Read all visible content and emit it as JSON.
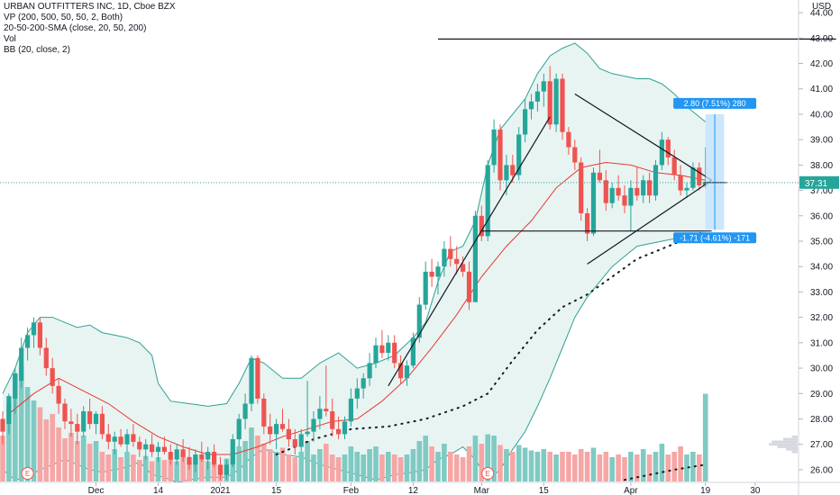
{
  "legend": {
    "line1": "URBAN OUTFITTERS INC, 1D, Cboe BZX",
    "line2": "VP (200, 500, 50, 50, 2, Both)",
    "line3": "20-50-200-SMA (close, 20, 50, 200)",
    "line4": "Vol",
    "line5": "BB (20, close, 2)"
  },
  "currency_label": "USD",
  "colors": {
    "up": "#26a69a",
    "down": "#ef5350",
    "up_vol": "#7fcac3",
    "down_vol": "#f5a6a5",
    "bb": "#2fa196",
    "bb_fill": "#e8f4f2",
    "sma20": "#e53935",
    "sma50": "#131722",
    "price_label": "#2196f3",
    "trend": "#131722"
  },
  "chart_data": {
    "type": "candlestick",
    "ylim": [
      25.5,
      44.5
    ],
    "yticks": [
      "26.00",
      "27.00",
      "28.00",
      "29.00",
      "30.00",
      "31.00",
      "32.00",
      "33.00",
      "34.00",
      "35.00",
      "36.00",
      "37.00",
      "38.00",
      "39.00",
      "40.00",
      "41.00",
      "42.00",
      "43.00",
      "44.00"
    ],
    "xticks": [
      {
        "label": "Dec",
        "index": 15
      },
      {
        "label": "14",
        "index": 25
      },
      {
        "label": "2021",
        "index": 35
      },
      {
        "label": "15",
        "index": 44
      },
      {
        "label": "Feb",
        "index": 56
      },
      {
        "label": "12",
        "index": 66
      },
      {
        "label": "Mar",
        "index": 77
      },
      {
        "label": "15",
        "index": 87
      },
      {
        "label": "Apr",
        "index": 101
      },
      {
        "label": "19",
        "index": 113
      },
      {
        "label": "30",
        "index": 121
      }
    ],
    "last_price": "37.31",
    "last_price_value": 37.31,
    "measure": {
      "upper_label": "2.80 (7.51%) 280",
      "lower_label": "-1.71 (-4.61%) -171",
      "top": 40.0,
      "bottom": 35.45,
      "index_from": 113,
      "index_to": 116
    },
    "earnings_markers": [
      {
        "label": "E",
        "index": 4
      },
      {
        "label": "E",
        "index": 78
      }
    ],
    "ohlc": [
      [
        28.0,
        28.3,
        27.0,
        27.5
      ],
      [
        27.8,
        29.0,
        27.4,
        28.9
      ],
      [
        28.8,
        30.0,
        28.2,
        29.8
      ],
      [
        29.5,
        31.2,
        29.2,
        30.8
      ],
      [
        30.8,
        31.6,
        30.3,
        31.3
      ],
      [
        31.3,
        32.0,
        30.8,
        31.8
      ],
      [
        31.8,
        32.0,
        30.5,
        30.8
      ],
      [
        30.8,
        31.2,
        29.7,
        30.0
      ],
      [
        30.0,
        30.4,
        29.0,
        29.3
      ],
      [
        29.3,
        29.6,
        28.2,
        28.6
      ],
      [
        28.6,
        28.8,
        27.6,
        27.9
      ],
      [
        27.9,
        28.4,
        27.3,
        27.8
      ],
      [
        27.8,
        28.2,
        27.0,
        27.5
      ],
      [
        27.5,
        28.5,
        27.3,
        28.3
      ],
      [
        28.3,
        28.8,
        27.6,
        27.8
      ],
      [
        27.8,
        28.3,
        27.4,
        28.2
      ],
      [
        28.2,
        28.5,
        27.2,
        27.4
      ],
      [
        27.4,
        27.8,
        26.8,
        27.1
      ],
      [
        27.1,
        27.5,
        26.6,
        27.3
      ],
      [
        27.3,
        27.6,
        26.9,
        27.0
      ],
      [
        27.0,
        27.6,
        26.7,
        27.4
      ],
      [
        27.4,
        27.8,
        26.9,
        27.1
      ],
      [
        27.1,
        27.3,
        26.5,
        26.8
      ],
      [
        26.8,
        27.2,
        26.4,
        27.0
      ],
      [
        27.0,
        27.4,
        26.5,
        26.7
      ],
      [
        26.7,
        27.1,
        26.3,
        26.9
      ],
      [
        26.9,
        27.3,
        26.6,
        26.7
      ],
      [
        26.7,
        27.0,
        26.2,
        26.4
      ],
      [
        26.4,
        27.0,
        26.2,
        26.8
      ],
      [
        26.8,
        27.2,
        26.3,
        26.5
      ],
      [
        26.5,
        26.9,
        26.0,
        26.2
      ],
      [
        26.2,
        26.8,
        25.9,
        26.6
      ],
      [
        26.6,
        27.1,
        26.3,
        26.4
      ],
      [
        26.4,
        26.9,
        26.0,
        26.7
      ],
      [
        26.7,
        27.0,
        26.1,
        26.2
      ],
      [
        26.2,
        26.5,
        25.6,
        25.8
      ],
      [
        25.8,
        26.4,
        25.6,
        26.2
      ],
      [
        26.2,
        27.4,
        26.1,
        27.2
      ],
      [
        27.2,
        28.2,
        26.9,
        28.0
      ],
      [
        28.0,
        29.0,
        27.6,
        28.6
      ],
      [
        28.6,
        30.5,
        28.3,
        30.4
      ],
      [
        30.4,
        30.5,
        28.6,
        28.8
      ],
      [
        28.8,
        29.0,
        27.4,
        27.7
      ],
      [
        27.7,
        28.2,
        27.0,
        27.4
      ],
      [
        27.4,
        28.0,
        26.8,
        27.8
      ],
      [
        27.8,
        28.4,
        27.5,
        27.6
      ],
      [
        27.6,
        28.0,
        26.9,
        27.2
      ],
      [
        27.2,
        27.6,
        26.6,
        26.9
      ],
      [
        26.9,
        27.6,
        26.7,
        27.4
      ],
      [
        27.4,
        29.5,
        27.3,
        27.5
      ],
      [
        27.5,
        28.3,
        27.1,
        28.0
      ],
      [
        28.0,
        28.9,
        27.6,
        28.4
      ],
      [
        28.4,
        30.1,
        28.1,
        28.3
      ],
      [
        28.3,
        28.8,
        27.3,
        27.6
      ],
      [
        27.6,
        28.1,
        27.2,
        27.4
      ],
      [
        27.4,
        28.1,
        27.2,
        27.9
      ],
      [
        27.9,
        29.2,
        27.7,
        28.8
      ],
      [
        28.8,
        29.6,
        28.4,
        29.2
      ],
      [
        29.2,
        29.8,
        28.8,
        29.6
      ],
      [
        29.6,
        30.6,
        29.3,
        30.2
      ],
      [
        30.2,
        31.2,
        30.0,
        30.9
      ],
      [
        30.9,
        31.5,
        30.4,
        30.6
      ],
      [
        30.6,
        31.3,
        30.3,
        31.0
      ],
      [
        31.0,
        31.3,
        30.0,
        30.2
      ],
      [
        30.2,
        30.5,
        29.4,
        29.6
      ],
      [
        29.6,
        30.3,
        29.3,
        30.1
      ],
      [
        30.1,
        31.4,
        30.0,
        31.2
      ],
      [
        31.2,
        32.8,
        31.0,
        32.5
      ],
      [
        32.5,
        34.2,
        32.3,
        33.8
      ],
      [
        33.8,
        34.3,
        33.2,
        33.6
      ],
      [
        33.6,
        34.2,
        32.9,
        34.0
      ],
      [
        34.0,
        35.0,
        33.6,
        34.7
      ],
      [
        34.7,
        35.2,
        34.0,
        34.3
      ],
      [
        34.3,
        34.8,
        33.7,
        34.1
      ],
      [
        34.1,
        34.4,
        33.6,
        33.8
      ],
      [
        33.8,
        34.2,
        32.3,
        32.6
      ],
      [
        32.6,
        36.2,
        32.6,
        36.0
      ],
      [
        36.0,
        36.4,
        35.0,
        35.2
      ],
      [
        35.2,
        38.2,
        35.0,
        38.0
      ],
      [
        38.0,
        39.8,
        37.7,
        39.4
      ],
      [
        39.4,
        39.6,
        37.0,
        37.4
      ],
      [
        37.4,
        38.4,
        36.8,
        38.0
      ],
      [
        38.0,
        38.4,
        37.3,
        37.6
      ],
      [
        37.6,
        39.5,
        37.4,
        39.2
      ],
      [
        39.2,
        40.6,
        38.9,
        40.2
      ],
      [
        40.2,
        40.8,
        39.8,
        40.5
      ],
      [
        40.5,
        41.2,
        40.1,
        40.9
      ],
      [
        40.9,
        41.6,
        40.3,
        41.3
      ],
      [
        41.3,
        41.9,
        39.4,
        39.6
      ],
      [
        39.6,
        41.6,
        39.3,
        41.4
      ],
      [
        41.4,
        41.6,
        39.0,
        39.3
      ],
      [
        39.3,
        39.5,
        38.4,
        38.7
      ],
      [
        38.7,
        39.0,
        37.8,
        38.1
      ],
      [
        38.1,
        38.3,
        35.8,
        36.1
      ],
      [
        36.1,
        36.3,
        35.0,
        35.3
      ],
      [
        35.3,
        37.9,
        35.2,
        37.7
      ],
      [
        37.7,
        38.6,
        37.3,
        37.4
      ],
      [
        37.4,
        37.8,
        36.2,
        36.5
      ],
      [
        36.5,
        37.3,
        36.3,
        37.1
      ],
      [
        37.1,
        37.6,
        36.6,
        36.8
      ],
      [
        36.8,
        37.2,
        36.1,
        36.4
      ],
      [
        36.4,
        37.4,
        35.4,
        37.1
      ],
      [
        37.1,
        37.9,
        36.6,
        36.8
      ],
      [
        36.8,
        37.6,
        36.5,
        37.4
      ],
      [
        37.4,
        37.7,
        36.5,
        36.8
      ],
      [
        36.8,
        38.2,
        36.6,
        38.0
      ],
      [
        38.0,
        39.3,
        37.8,
        39.0
      ],
      [
        39.0,
        39.1,
        38.0,
        38.3
      ],
      [
        38.3,
        38.6,
        37.4,
        37.6
      ],
      [
        37.6,
        38.0,
        36.8,
        37.0
      ],
      [
        37.0,
        37.3,
        36.7,
        37.1
      ],
      [
        37.1,
        38.1,
        37.0,
        37.9
      ],
      [
        37.9,
        38.1,
        37.0,
        37.2
      ],
      [
        37.2,
        38.7,
        37.1,
        37.31
      ]
    ],
    "volume": [
      0.34,
      0.58,
      0.79,
      0.85,
      0.7,
      0.6,
      0.55,
      0.46,
      0.5,
      0.4,
      0.32,
      0.36,
      0.3,
      0.34,
      0.28,
      0.3,
      0.22,
      0.2,
      0.24,
      0.18,
      0.22,
      0.2,
      0.16,
      0.19,
      0.15,
      0.18,
      0.16,
      0.17,
      0.15,
      0.2,
      0.14,
      0.18,
      0.16,
      0.15,
      0.13,
      0.12,
      0.17,
      0.22,
      0.26,
      0.3,
      0.4,
      0.34,
      0.28,
      0.24,
      0.22,
      0.25,
      0.2,
      0.18,
      0.22,
      0.3,
      0.2,
      0.24,
      0.28,
      0.2,
      0.18,
      0.2,
      0.26,
      0.22,
      0.2,
      0.24,
      0.26,
      0.2,
      0.22,
      0.2,
      0.18,
      0.2,
      0.24,
      0.3,
      0.34,
      0.26,
      0.22,
      0.28,
      0.22,
      0.2,
      0.18,
      0.26,
      0.34,
      0.28,
      0.35,
      0.34,
      0.27,
      0.24,
      0.22,
      0.27,
      0.25,
      0.23,
      0.22,
      0.24,
      0.22,
      0.2,
      0.22,
      0.22,
      0.2,
      0.24,
      0.22,
      0.25,
      0.2,
      0.22,
      0.18,
      0.2,
      0.18,
      0.22,
      0.2,
      0.24,
      0.2,
      0.22,
      0.28,
      0.2,
      0.22,
      0.26,
      0.2,
      0.22,
      0.2,
      0.65
    ],
    "sma20": [
      [
        1,
        28.2
      ],
      [
        5,
        29.0
      ],
      [
        9,
        29.6
      ],
      [
        13,
        29.1
      ],
      [
        17,
        28.6
      ],
      [
        21,
        27.9
      ],
      [
        25,
        27.3
      ],
      [
        29,
        26.9
      ],
      [
        33,
        26.6
      ],
      [
        37,
        26.6
      ],
      [
        41,
        26.9
      ],
      [
        45,
        27.3
      ],
      [
        49,
        27.6
      ],
      [
        53,
        27.9
      ],
      [
        57,
        28.0
      ],
      [
        61,
        28.7
      ],
      [
        65,
        29.6
      ],
      [
        69,
        30.8
      ],
      [
        73,
        32.1
      ],
      [
        77,
        33.6
      ],
      [
        81,
        34.8
      ],
      [
        85,
        35.8
      ],
      [
        89,
        37.1
      ],
      [
        93,
        37.9
      ],
      [
        97,
        38.1
      ],
      [
        101,
        38.0
      ],
      [
        105,
        37.7
      ],
      [
        109,
        37.6
      ],
      [
        113,
        37.4
      ]
    ],
    "sma50": [
      [
        44,
        26.6
      ],
      [
        50,
        27.2
      ],
      [
        56,
        27.6
      ],
      [
        62,
        27.7
      ],
      [
        68,
        28.0
      ],
      [
        74,
        28.5
      ],
      [
        78,
        29.0
      ],
      [
        82,
        30.3
      ],
      [
        86,
        31.5
      ],
      [
        90,
        32.4
      ],
      [
        94,
        32.9
      ],
      [
        98,
        33.6
      ],
      [
        102,
        34.3
      ],
      [
        106,
        34.7
      ],
      [
        110,
        35.1
      ],
      [
        113,
        35.4
      ]
    ],
    "sma200": [
      [
        100,
        25.6
      ],
      [
        104,
        25.8
      ],
      [
        108,
        26.0
      ],
      [
        113,
        26.2
      ]
    ],
    "bb_upper": [
      [
        0,
        29.0
      ],
      [
        2,
        30.0
      ],
      [
        4,
        31.4
      ],
      [
        6,
        32.0
      ],
      [
        8,
        32.0
      ],
      [
        10,
        31.8
      ],
      [
        12,
        31.6
      ],
      [
        14,
        31.7
      ],
      [
        16,
        31.4
      ],
      [
        18,
        31.3
      ],
      [
        20,
        31.2
      ],
      [
        22,
        31.0
      ],
      [
        24,
        30.5
      ],
      [
        25,
        29.4
      ],
      [
        27,
        28.7
      ],
      [
        30,
        28.6
      ],
      [
        33,
        28.5
      ],
      [
        36,
        28.6
      ],
      [
        38,
        29.4
      ],
      [
        40,
        30.4
      ],
      [
        42,
        30.2
      ],
      [
        45,
        29.6
      ],
      [
        48,
        29.6
      ],
      [
        51,
        30.2
      ],
      [
        54,
        30.6
      ],
      [
        57,
        30.0
      ],
      [
        60,
        30.2
      ],
      [
        63,
        30.5
      ],
      [
        66,
        31.2
      ],
      [
        68,
        31.8
      ],
      [
        70,
        33.4
      ],
      [
        72,
        34.6
      ],
      [
        74,
        34.8
      ],
      [
        76,
        35.8
      ],
      [
        78,
        38.0
      ],
      [
        80,
        39.4
      ],
      [
        82,
        40.0
      ],
      [
        84,
        40.6
      ],
      [
        86,
        41.6
      ],
      [
        88,
        42.3
      ],
      [
        90,
        42.6
      ],
      [
        92,
        42.8
      ],
      [
        94,
        42.4
      ],
      [
        96,
        41.8
      ],
      [
        98,
        41.6
      ],
      [
        100,
        41.5
      ],
      [
        102,
        41.4
      ],
      [
        104,
        41.4
      ],
      [
        106,
        41.2
      ],
      [
        108,
        40.8
      ],
      [
        110,
        40.3
      ],
      [
        112,
        39.9
      ],
      [
        113,
        39.7
      ]
    ],
    "bb_lower": [
      [
        0,
        26.0
      ],
      [
        2,
        25.6
      ],
      [
        4,
        25.7
      ],
      [
        6,
        26.0
      ],
      [
        8,
        26.2
      ],
      [
        10,
        26.4
      ],
      [
        12,
        26.2
      ],
      [
        14,
        26.0
      ],
      [
        16,
        25.9
      ],
      [
        18,
        26.0
      ],
      [
        20,
        26.1
      ],
      [
        22,
        26.3
      ],
      [
        24,
        25.8
      ],
      [
        26,
        25.7
      ],
      [
        28,
        25.5
      ],
      [
        30,
        25.6
      ],
      [
        33,
        25.7
      ],
      [
        36,
        25.7
      ],
      [
        38,
        26.0
      ],
      [
        40,
        26.5
      ],
      [
        42,
        26.8
      ],
      [
        45,
        26.6
      ],
      [
        48,
        26.5
      ],
      [
        51,
        26.2
      ],
      [
        54,
        26.0
      ],
      [
        57,
        25.8
      ],
      [
        60,
        25.6
      ],
      [
        63,
        25.8
      ],
      [
        66,
        25.9
      ],
      [
        68,
        26.0
      ],
      [
        70,
        26.4
      ],
      [
        72,
        26.6
      ],
      [
        74,
        26.9
      ],
      [
        76,
        26.4
      ],
      [
        78,
        25.6
      ],
      [
        80,
        26.0
      ],
      [
        82,
        26.8
      ],
      [
        84,
        27.5
      ],
      [
        86,
        28.5
      ],
      [
        88,
        29.6
      ],
      [
        90,
        30.8
      ],
      [
        92,
        32.0
      ],
      [
        94,
        32.8
      ],
      [
        96,
        33.4
      ],
      [
        98,
        34.0
      ],
      [
        100,
        34.4
      ],
      [
        102,
        34.8
      ],
      [
        104,
        34.9
      ],
      [
        106,
        35.0
      ],
      [
        108,
        35.1
      ],
      [
        110,
        35.1
      ],
      [
        112,
        35.2
      ],
      [
        113,
        35.2
      ]
    ],
    "trendlines": [
      {
        "from": [
          70,
          42.96
        ],
        "to": [
          134,
          42.96
        ]
      },
      {
        "from": [
          62,
          29.3
        ],
        "to": [
          88,
          39.9
        ]
      },
      {
        "from": [
          92,
          40.8
        ],
        "to": [
          114,
          37.4
        ]
      },
      {
        "from": [
          94,
          34.1
        ],
        "to": [
          114,
          37.4
        ]
      },
      {
        "from": [
          77,
          35.4
        ],
        "to": [
          114,
          35.4
        ]
      }
    ],
    "volume_profile": [
      {
        "price": 27.3,
        "size": 0.2
      },
      {
        "price": 27.2,
        "size": 0.5
      },
      {
        "price": 27.1,
        "size": 0.9
      },
      {
        "price": 27.0,
        "size": 1.0
      },
      {
        "price": 26.9,
        "size": 0.7
      },
      {
        "price": 26.8,
        "size": 0.4
      },
      {
        "price": 26.7,
        "size": 0.2
      }
    ]
  }
}
